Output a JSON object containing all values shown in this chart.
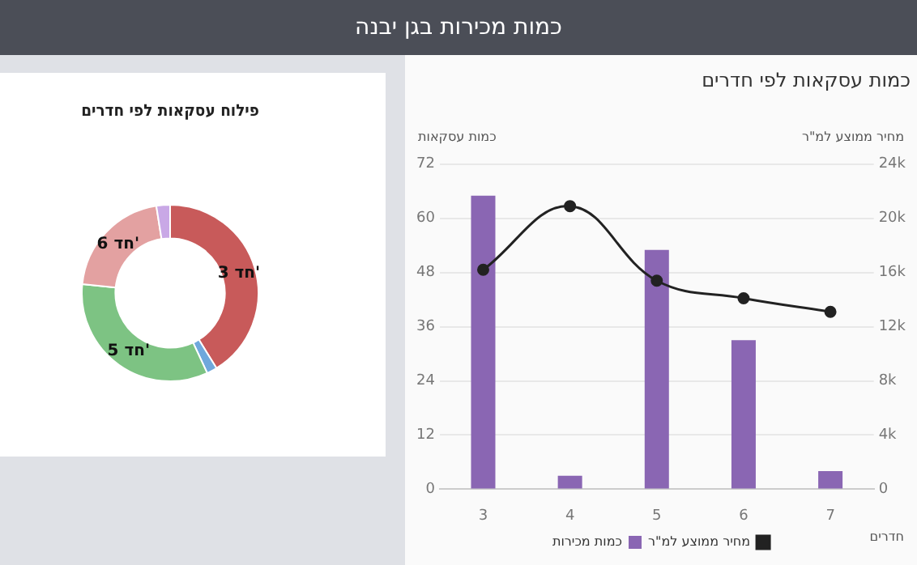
{
  "chart_data": [
    {
      "type": "other",
      "title": "כמות מכירות בגן יבנה"
    },
    {
      "type": "bar",
      "title": "כמות עסקאות לפי חדרים",
      "ylabel": "כמות עסקאות",
      "y2label": "מחיר ממוצע למ\"ר",
      "xlabel": "חדרים",
      "categories": [
        "3",
        "4",
        "5",
        "6",
        "7"
      ],
      "series": [
        {
          "name": "כמות מכירות",
          "type": "bar",
          "color": "#8a66b3",
          "values": [
            65,
            3,
            53,
            33,
            4
          ]
        },
        {
          "name": "מחיר ממוצע למ\"ר",
          "type": "line",
          "axis": "y2",
          "color": "#222222",
          "marker": "circle",
          "values": [
            16200,
            20900,
            15400,
            14100,
            13100
          ]
        }
      ],
      "ylim": [
        0,
        72
      ],
      "yticks": [
        0,
        12,
        24,
        36,
        48,
        60,
        72
      ],
      "y2lim": [
        0,
        24000
      ],
      "y2ticks": [
        {
          "value": 0,
          "label": "0"
        },
        {
          "value": 4000,
          "label": "4k"
        },
        {
          "value": 8000,
          "label": "8k"
        },
        {
          "value": 12000,
          "label": "12k"
        },
        {
          "value": 16000,
          "label": "16k"
        },
        {
          "value": 20000,
          "label": "20k"
        },
        {
          "value": 24000,
          "label": "24k"
        }
      ],
      "grid": "y",
      "legend": "bottom"
    },
    {
      "type": "donut",
      "title": "פילוח עסקאות לפי חדרים",
      "categories": [
        "3 חד'",
        null,
        "5 חד'",
        "6 חד'",
        null
      ],
      "values": [
        41.2,
        1.9,
        33.5,
        20.9,
        2.5
      ],
      "colors": [
        "#c85a5a",
        "#6fa8dc",
        "#7dc383",
        "#e3a1a1",
        "#c9a8e6"
      ],
      "legend": false
    }
  ]
}
